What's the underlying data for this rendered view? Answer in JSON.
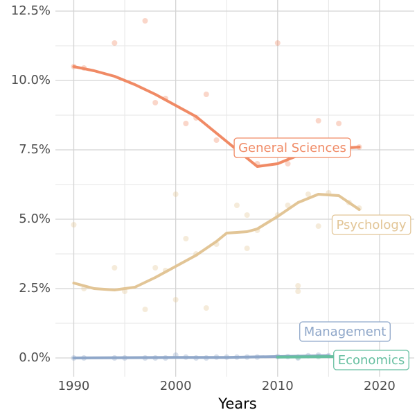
{
  "chart_data": {
    "type": "scatter_smooth",
    "x_label": "Years",
    "xlim": [
      1988.2,
      2023.4
    ],
    "ylim": [
      -0.675,
      12.9
    ],
    "xticks": [
      1990,
      2000,
      2010,
      2020
    ],
    "x_minor_ticks": [
      1995,
      2005,
      2015
    ],
    "yticks": [
      {
        "value": 0,
        "label": "0.0%"
      },
      {
        "value": 2.5,
        "label": "2.5%"
      },
      {
        "value": 5,
        "label": "5.0%"
      },
      {
        "value": 7.5,
        "label": "7.5%"
      },
      {
        "value": 10,
        "label": "10.0%"
      },
      {
        "value": 12.5,
        "label": "12.5%"
      }
    ],
    "y_minor_ticks": [
      1.25,
      3.75,
      6.25,
      8.75,
      11.25
    ],
    "grid": true,
    "series": [
      {
        "name": "General Sciences",
        "color": "#f08a65",
        "x": [
          1990,
          1991,
          1994,
          1997,
          1998,
          1999,
          2001,
          2002,
          2003,
          2004,
          2006,
          2008,
          2010,
          2011,
          2014,
          2016,
          2018
        ],
        "values": [
          10.5,
          10.45,
          11.35,
          12.15,
          9.2,
          9.35,
          8.45,
          8.65,
          9.5,
          7.85,
          7.3,
          7.0,
          11.35,
          7.0,
          8.55,
          8.45,
          7.6
        ],
        "trend_x": [
          1990,
          1992,
          1994,
          1996,
          1998,
          2000,
          2002,
          2004,
          2006,
          2008,
          2010,
          2012,
          2014,
          2016,
          2018
        ],
        "trend_values": [
          10.5,
          10.35,
          10.15,
          9.85,
          9.5,
          9.1,
          8.7,
          8.1,
          7.5,
          6.9,
          7.0,
          7.3,
          7.5,
          7.55,
          7.6
        ]
      },
      {
        "name": "Psychology",
        "color": "#e2c596",
        "x": [
          1990,
          1991,
          1994,
          1995,
          1997,
          1998,
          1999,
          2000,
          2000,
          2001,
          2002,
          2003,
          2004,
          2006,
          2007,
          2007,
          2008,
          2010,
          2011,
          2012,
          2012,
          2013,
          2014,
          2015,
          2017,
          2018
        ],
        "values": [
          4.8,
          2.5,
          3.25,
          2.4,
          1.75,
          3.25,
          3.15,
          5.9,
          2.1,
          4.3,
          3.75,
          1.8,
          4.1,
          5.5,
          5.15,
          3.95,
          4.6,
          5.15,
          5.5,
          2.6,
          2.4,
          5.9,
          4.75,
          5.95,
          5.6,
          5.4
        ],
        "trend_x": [
          1990,
          1992,
          1994,
          1996,
          1998,
          2000,
          2002,
          2004,
          2005,
          2007,
          2008,
          2010,
          2012,
          2014,
          2016,
          2018
        ],
        "trend_values": [
          2.7,
          2.5,
          2.45,
          2.55,
          2.9,
          3.3,
          3.7,
          4.2,
          4.5,
          4.55,
          4.65,
          5.1,
          5.6,
          5.9,
          5.85,
          5.35
        ]
      },
      {
        "name": "Management",
        "color": "#8fa7c9",
        "x": [
          1990,
          1991,
          1994,
          1995,
          1997,
          1998,
          1999,
          2000,
          2001,
          2002,
          2003,
          2004,
          2005,
          2006,
          2007,
          2008,
          2010,
          2011,
          2012,
          2013,
          2014,
          2015
        ],
        "values": [
          0,
          0,
          0,
          0,
          0,
          0,
          0,
          0.1,
          0.03,
          0,
          0,
          0.03,
          0.03,
          0.03,
          0.03,
          0.03,
          0.05,
          0.05,
          0,
          0.08,
          0.1,
          0.08
        ],
        "trend_x": [
          1990,
          2000,
          2005,
          2010,
          2015
        ],
        "trend_values": [
          0,
          0.02,
          0.02,
          0.05,
          0.08
        ]
      },
      {
        "name": "Economics",
        "color": "#66bfa0",
        "x": [
          2012,
          2014,
          2016
        ],
        "values": [
          0.03,
          0.05,
          0.05
        ],
        "trend_x": [
          2010,
          2016
        ],
        "trend_values": [
          0.03,
          0.05
        ]
      }
    ]
  }
}
